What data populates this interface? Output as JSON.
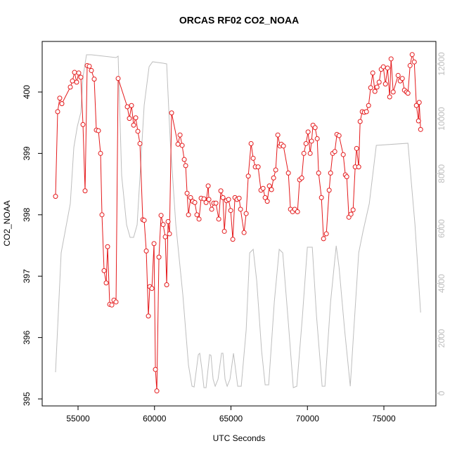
{
  "chart_data": {
    "type": "line",
    "title": "ORCAS RF02 CO2_NOAA",
    "xlabel": "UTC Seconds",
    "ylabel": "CO2_NOAA",
    "xlim": [
      52655,
      78402
    ],
    "xticks": [
      55000,
      60000,
      65000,
      70000,
      75000
    ],
    "ylim": [
      394.886,
      400.824
    ],
    "yticks": [
      395,
      396,
      397,
      398,
      399,
      400
    ],
    "y2lim": [
      -460,
      12819
    ],
    "y2ticks": [
      0,
      2000,
      4000,
      6000,
      8000,
      10000,
      12000
    ],
    "series": [
      {
        "color": "#e41a1c",
        "markers": true,
        "x": [
          53528,
          53666,
          53804,
          53942,
          54494,
          54632,
          54770,
          54908,
          55046,
          55184,
          55322,
          55460,
          55598,
          55736,
          55874,
          56058,
          56196,
          56334,
          56472,
          56564,
          56702,
          56840,
          56932,
          57070,
          57208,
          57346,
          57484,
          57622,
          58220,
          58358,
          58496,
          58634,
          58772,
          58910,
          59048,
          59232,
          59324,
          59462,
          59600,
          59692,
          59830,
          59968,
          60060,
          60152,
          60290,
          60428,
          60566,
          60704,
          60796,
          60888,
          60980,
          61118,
          61532,
          61670,
          61808,
          61946,
          62038,
          62130,
          62222,
          62360,
          62498,
          62636,
          62774,
          62912,
          63050,
          63234,
          63372,
          63510,
          63556,
          63740,
          63878,
          64016,
          64200,
          64338,
          64476,
          64568,
          64706,
          64844,
          64982,
          65120,
          65258,
          65396,
          65534,
          65626,
          65856,
          65994,
          66132,
          66316,
          66454,
          66592,
          66776,
          66960,
          67098,
          67236,
          67374,
          67512,
          67650,
          67788,
          67926,
          68064,
          68202,
          68294,
          68432,
          68754,
          68892,
          69030,
          69168,
          69352,
          69490,
          69628,
          69766,
          69904,
          70042,
          70180,
          70272,
          70364,
          70502,
          70640,
          70732,
          70916,
          71054,
          71238,
          71422,
          71514,
          71652,
          71790,
          71928,
          72066,
          72342,
          72480,
          72572,
          72710,
          72848,
          72986,
          73124,
          73216,
          73354,
          73446,
          73584,
          73722,
          73860,
          73998,
          74136,
          74274,
          74412,
          74550,
          74688,
          74826,
          74964,
          75102,
          75240,
          75378,
          75470,
          75608,
          75930,
          76068,
          76206,
          76344,
          76482,
          76574,
          76712,
          76850,
          76988,
          77126,
          77264,
          77310,
          77402
        ],
        "values": [
          398.3,
          399.68,
          399.9,
          399.81,
          400.08,
          400.18,
          400.32,
          400.16,
          400.31,
          400.24,
          399.47,
          398.39,
          400.43,
          400.42,
          400.35,
          400.21,
          399.38,
          399.37,
          399.0,
          398.0,
          397.09,
          396.89,
          397.48,
          396.54,
          396.53,
          396.61,
          396.58,
          400.22,
          399.76,
          399.57,
          399.78,
          399.46,
          399.58,
          399.36,
          399.16,
          397.92,
          397.91,
          397.41,
          396.35,
          396.83,
          396.8,
          397.53,
          395.48,
          395.13,
          397.31,
          397.99,
          397.84,
          397.64,
          396.86,
          397.89,
          397.69,
          399.66,
          399.15,
          399.3,
          399.13,
          398.9,
          398.8,
          398.35,
          398.0,
          398.28,
          398.22,
          398.2,
          398.0,
          397.93,
          398.27,
          398.26,
          398.2,
          398.47,
          398.25,
          398.09,
          398.19,
          398.19,
          397.93,
          398.39,
          398.28,
          397.73,
          398.23,
          398.25,
          398.07,
          397.6,
          398.28,
          398.25,
          398.27,
          398.09,
          397.71,
          398.02,
          398.63,
          399.16,
          398.92,
          398.78,
          398.78,
          398.4,
          398.43,
          398.28,
          398.22,
          398.47,
          398.41,
          398.6,
          398.73,
          399.3,
          399.12,
          399.15,
          399.12,
          398.68,
          398.09,
          398.05,
          398.09,
          398.05,
          398.57,
          398.6,
          399.0,
          399.16,
          399.35,
          399.0,
          399.2,
          399.46,
          399.42,
          399.24,
          398.68,
          398.28,
          397.61,
          397.69,
          398.4,
          398.68,
          399.0,
          399.03,
          399.31,
          399.29,
          398.98,
          398.65,
          398.62,
          397.96,
          398.01,
          398.08,
          398.78,
          399.08,
          398.78,
          399.52,
          399.68,
          399.67,
          399.68,
          399.78,
          400.07,
          400.31,
          400.01,
          400.08,
          400.16,
          400.37,
          400.41,
          400.13,
          400.39,
          399.92,
          400.54,
          400.0,
          400.27,
          400.18,
          400.22,
          400.03,
          400.0,
          399.98,
          400.43,
          400.61,
          400.49,
          399.78,
          399.53,
          399.83,
          399.39
        ]
      },
      {
        "color": "#bebebe",
        "axis": "y2",
        "markers": false,
        "x": [
          53528,
          53896,
          54494,
          54724,
          54954,
          55184,
          55322,
          55552,
          55874,
          57484,
          57622,
          57852,
          58174,
          58404,
          58634,
          58864,
          59324,
          59646,
          59876,
          60566,
          60796,
          61026,
          61394,
          61854,
          62222,
          62452,
          62590,
          62866,
          62958,
          63096,
          63234,
          63372,
          63602,
          63694,
          63832,
          63970,
          64154,
          64384,
          64476,
          64614,
          64752,
          64936,
          65166,
          65442,
          65672,
          65994,
          66224,
          66454,
          66684,
          67006,
          67236,
          67466,
          67834,
          68156,
          68386,
          68754,
          69076,
          69306,
          69674,
          69996,
          70318,
          70594,
          70962,
          71146,
          71514,
          71882,
          72066,
          72434,
          72802,
          73032,
          73354,
          73630,
          74044,
          74504,
          76574,
          77034,
          77402
        ],
        "values": [
          768,
          5118,
          6909,
          8956,
          9724,
          10235,
          11515,
          12334,
          12334,
          12231,
          12283,
          7933,
          6141,
          5681,
          5681,
          6141,
          10491,
          11899,
          12078,
          12026,
          12001,
          9212,
          6141,
          3582,
          1024,
          256,
          230,
          1407,
          1458,
          896,
          205,
          205,
          1407,
          1382,
          512,
          256,
          512,
          1458,
          1458,
          512,
          256,
          512,
          1458,
          256,
          256,
          2303,
          5118,
          5246,
          4094,
          1535,
          307,
          307,
          3327,
          5246,
          5118,
          2559,
          205,
          256,
          2815,
          5322,
          5322,
          2815,
          256,
          256,
          3327,
          5374,
          4606,
          2303,
          256,
          2303,
          5118,
          5885,
          6909,
          9033,
          9110,
          6141,
          2943
        ]
      }
    ]
  }
}
